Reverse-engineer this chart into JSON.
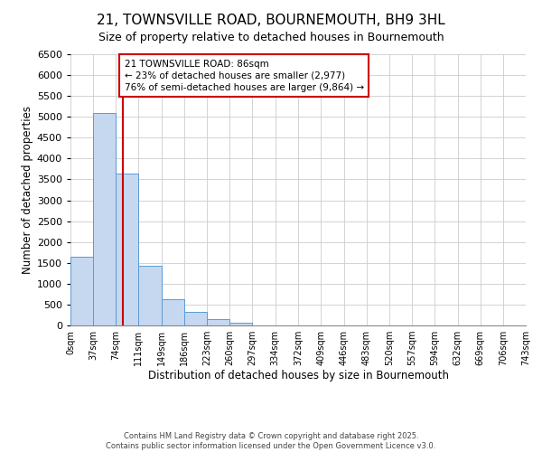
{
  "title": "21, TOWNSVILLE ROAD, BOURNEMOUTH, BH9 3HL",
  "subtitle": "Size of property relative to detached houses in Bournemouth",
  "xlabel": "Distribution of detached houses by size in Bournemouth",
  "ylabel": "Number of detached properties",
  "bin_edges": [
    0,
    37,
    74,
    111,
    149,
    186,
    223,
    260,
    297,
    334,
    372,
    409,
    446,
    483,
    520,
    557,
    594,
    632,
    669,
    706,
    743
  ],
  "bar_heights": [
    1650,
    5100,
    3650,
    1430,
    620,
    320,
    145,
    70,
    0,
    0,
    0,
    0,
    0,
    0,
    0,
    0,
    0,
    0,
    0,
    0
  ],
  "bar_color": "#c5d8f0",
  "bar_edge_color": "#5b9bd5",
  "property_line_x": 86,
  "property_line_color": "#cc0000",
  "annotation_line1": "21 TOWNSVILLE ROAD: 86sqm",
  "annotation_line2": "← 23% of detached houses are smaller (2,977)",
  "annotation_line3": "76% of semi-detached houses are larger (9,864) →",
  "annotation_box_color": "#cc0000",
  "annotation_box_bg": "#ffffff",
  "ylim": [
    0,
    6500
  ],
  "yticks": [
    0,
    500,
    1000,
    1500,
    2000,
    2500,
    3000,
    3500,
    4000,
    4500,
    5000,
    5500,
    6000,
    6500
  ],
  "grid_color": "#cccccc",
  "footer_line1": "Contains HM Land Registry data © Crown copyright and database right 2025.",
  "footer_line2": "Contains public sector information licensed under the Open Government Licence v3.0.",
  "tick_labels": [
    "0sqm",
    "37sqm",
    "74sqm",
    "111sqm",
    "149sqm",
    "186sqm",
    "223sqm",
    "260sqm",
    "297sqm",
    "334sqm",
    "372sqm",
    "409sqm",
    "446sqm",
    "483sqm",
    "520sqm",
    "557sqm",
    "594sqm",
    "632sqm",
    "669sqm",
    "706sqm",
    "743sqm"
  ]
}
